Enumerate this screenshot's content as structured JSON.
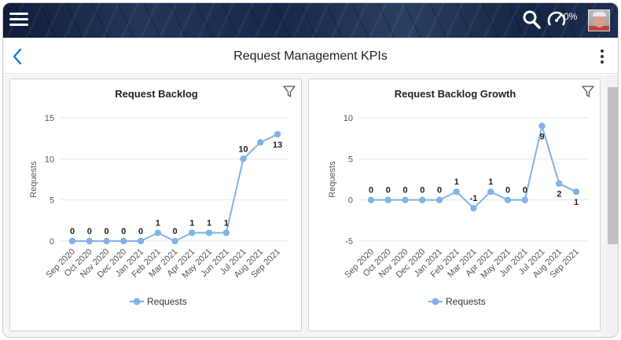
{
  "header": {
    "title": "Request Management KPIs",
    "gauge_value": "0%"
  },
  "icons": {
    "menu": "hamburger-icon",
    "search": "search-icon",
    "gauge": "gauge-icon",
    "back": "chevron-left-icon",
    "more": "more-vertical-icon",
    "filter": "filter-icon"
  },
  "colors": {
    "series": "#7fb4e6",
    "accent": "#1a73e8",
    "topbar": "#1b2d50"
  },
  "chart_data": [
    {
      "type": "line",
      "title": "Request Backlog",
      "ylabel": "Requests",
      "xlabel": "",
      "categories": [
        "Sep 2020",
        "Oct 2020",
        "Nov 2020",
        "Dec 2020",
        "Jan 2021",
        "Feb 2021",
        "Mar 2021",
        "Apr 2021",
        "May 2021",
        "Jun 2021",
        "Jul 2021",
        "Aug 2021",
        "Sep 2021"
      ],
      "yticks": [
        0,
        5,
        10,
        15
      ],
      "ylim": [
        0,
        15
      ],
      "grid": true,
      "legend": "bottom",
      "series": [
        {
          "name": "Requests",
          "values": [
            0,
            0,
            0,
            0,
            0,
            1,
            0,
            1,
            1,
            1,
            10,
            12,
            13
          ],
          "labels": [
            "0",
            "0",
            "0",
            "0",
            "0",
            "1",
            "0",
            "1",
            "1",
            "1",
            "10",
            "",
            "13"
          ]
        }
      ]
    },
    {
      "type": "line",
      "title": "Request Backlog Growth",
      "ylabel": "Requests",
      "xlabel": "",
      "categories": [
        "Sep 2020",
        "Oct 2020",
        "Nov 2020",
        "Dec 2020",
        "Jan 2021",
        "Feb 2021",
        "Mar 2021",
        "Apr 2021",
        "May 2021",
        "Jun 2021",
        "Jul 2021",
        "Aug 2021",
        "Sep 2021"
      ],
      "yticks": [
        -5,
        0,
        5,
        10
      ],
      "ylim": [
        -5,
        10
      ],
      "grid": true,
      "legend": "bottom",
      "series": [
        {
          "name": "Requests",
          "values": [
            0,
            0,
            0,
            0,
            0,
            1,
            -1,
            1,
            0,
            0,
            9,
            2,
            1
          ],
          "labels": [
            "0",
            "0",
            "0",
            "0",
            "0",
            "1",
            "-1",
            "1",
            "0",
            "0",
            "9",
            "2",
            "1"
          ]
        }
      ]
    }
  ]
}
